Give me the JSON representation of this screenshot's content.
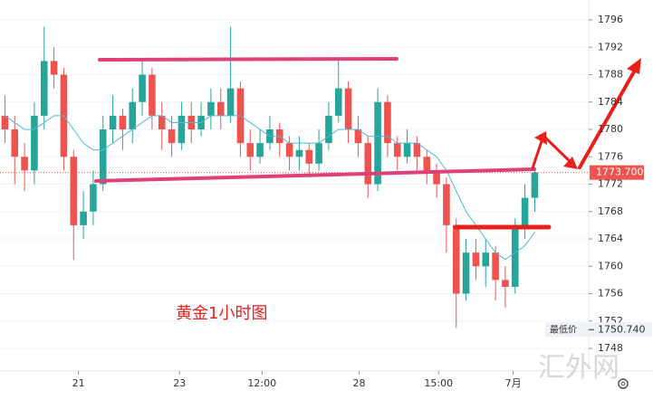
{
  "chart_data": {
    "type": "candlestick",
    "annotation": "黄金1小时图",
    "watermark": "汇外网",
    "up_color": "#26a69a",
    "down_color": "#ef5350",
    "xlim": [
      0,
      60
    ],
    "xticks": [
      {
        "value": 8.0,
        "label": "21"
      },
      {
        "value": 18.3,
        "label": "23"
      },
      {
        "value": 26.7,
        "label": "12:00"
      },
      {
        "value": 36.6,
        "label": "28"
      },
      {
        "value": 44.7,
        "label": "15:00"
      },
      {
        "value": 52.3,
        "label": "7月"
      }
    ],
    "ylim": [
      1748,
      1796
    ],
    "yticks": [
      1748,
      1752,
      1756,
      1760,
      1764,
      1768,
      1772,
      1776,
      1780,
      1784,
      1788,
      1792,
      1796
    ],
    "open": [
      1782,
      1780,
      1776,
      1774,
      1782,
      1790,
      1788,
      1776,
      1766,
      1768,
      1772,
      1780,
      1782,
      1780,
      1784,
      1788,
      1782,
      1780,
      1778,
      1782,
      1780,
      1782,
      1784,
      1782,
      1786,
      1778,
      1776,
      1778,
      1780,
      1778,
      1776,
      1777,
      1775,
      1778,
      1782,
      1786,
      1780,
      1778,
      1772,
      1784,
      1778,
      1776,
      1778,
      1776,
      1774,
      1772,
      1766,
      1756,
      1762,
      1760,
      1762,
      1758,
      1757,
      1766,
      1770
    ],
    "high": [
      1785,
      1782,
      1778,
      1784,
      1795,
      1792,
      1789,
      1777,
      1771,
      1774,
      1782,
      1785,
      1783,
      1786,
      1790,
      1789,
      1784,
      1782,
      1784,
      1784,
      1784,
      1786,
      1786,
      1795,
      1787,
      1780,
      1780,
      1782,
      1781,
      1779,
      1779,
      1778,
      1780,
      1784,
      1790,
      1787,
      1782,
      1779,
      1786,
      1785,
      1779,
      1780,
      1779,
      1777,
      1775,
      1773,
      1767,
      1764,
      1764,
      1764,
      1763,
      1760,
      1767,
      1772,
      1774.5
    ],
    "low": [
      1778,
      1772,
      1771,
      1772,
      1780,
      1786,
      1774,
      1761,
      1764,
      1766,
      1771,
      1778,
      1777,
      1778,
      1782,
      1780,
      1777,
      1776,
      1777,
      1778,
      1779,
      1780,
      1780,
      1781,
      1776,
      1774,
      1775,
      1777,
      1776,
      1774,
      1774,
      1773,
      1774,
      1777,
      1781,
      1778,
      1776,
      1770,
      1771,
      1776,
      1774,
      1775,
      1774,
      1772,
      1770,
      1762,
      1751,
      1755,
      1758,
      1757,
      1755,
      1754,
      1756,
      1764,
      1768
    ],
    "close": [
      1780,
      1776,
      1774,
      1782,
      1790,
      1788,
      1776,
      1766,
      1768,
      1772,
      1780,
      1782,
      1780,
      1784,
      1788,
      1782,
      1780,
      1778,
      1782,
      1780,
      1782,
      1784,
      1782,
      1786,
      1778,
      1776,
      1778,
      1780,
      1778,
      1776,
      1777,
      1775,
      1778,
      1782,
      1786,
      1780,
      1778,
      1772,
      1784,
      1778,
      1776,
      1778,
      1776,
      1774,
      1772,
      1766,
      1756,
      1762,
      1760,
      1762,
      1758,
      1757,
      1766,
      1770,
      1773.7
    ],
    "ma": {
      "color": "#4fb6d8",
      "values": [
        1782,
        1781,
        1780,
        1780,
        1781,
        1782,
        1782,
        1780,
        1778,
        1777,
        1777,
        1778,
        1779,
        1780,
        1781,
        1782,
        1782,
        1781,
        1781,
        1781,
        1781,
        1782,
        1782,
        1782,
        1782,
        1781,
        1780,
        1779,
        1779,
        1778,
        1778,
        1778,
        1778,
        1779,
        1780,
        1780,
        1780,
        1779,
        1779,
        1779,
        1778,
        1778,
        1778,
        1777,
        1776,
        1774,
        1771,
        1768,
        1766,
        1764,
        1762,
        1761,
        1762,
        1763,
        1765
      ]
    },
    "last_price": {
      "value": 1773.7,
      "label": "1773.700"
    },
    "low_label": "最低价",
    "low_price": {
      "value": 1750.74,
      "label": "1750.740"
    }
  }
}
